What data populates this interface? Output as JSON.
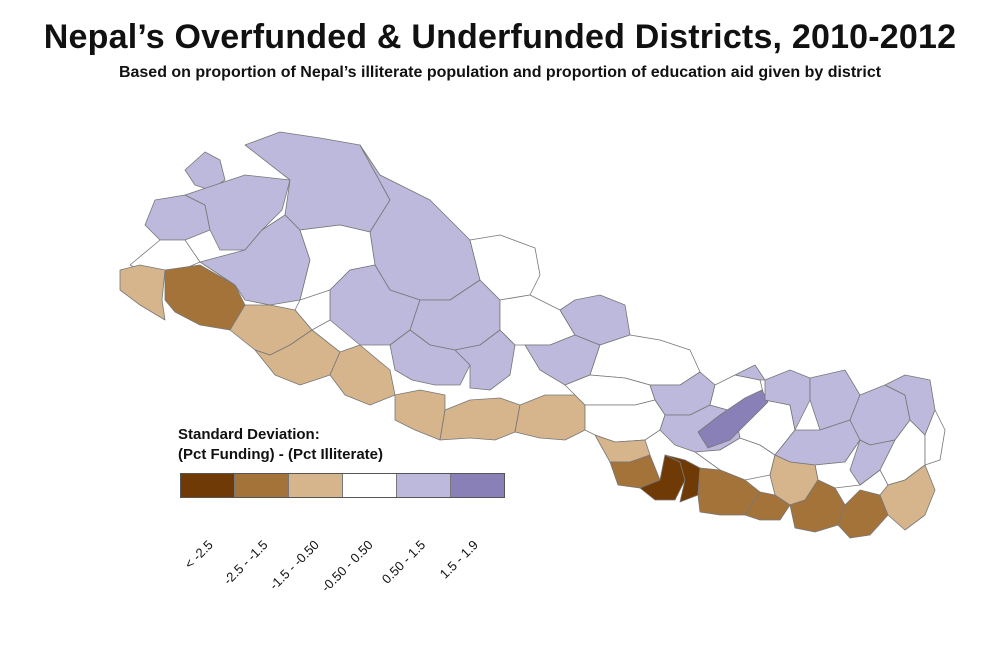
{
  "title": "Nepal’s Overfunded & Underfunded Districts, 2010-2012",
  "subtitle": "Based on proportion of Nepal’s illiterate population and proportion of education aid given by district",
  "legend": {
    "title_line1": "Standard Deviation:",
    "title_line2": "(Pct Funding) - (Pct Illiterate)",
    "classes": [
      {
        "label": "< -2.5",
        "color": "#6f3a06"
      },
      {
        "label": "-2.5 - -1.5",
        "color": "#a4733a"
      },
      {
        "label": "-1.5 - -0.50",
        "color": "#d6b58c"
      },
      {
        "label": "-0.50 - 0.50",
        "color": "#ffffff"
      },
      {
        "label": "0.50 - 1.5",
        "color": "#bcb9dc"
      },
      {
        "label": "1.5 - 1.9",
        "color": "#8a80b8"
      }
    ]
  },
  "map": {
    "border_color": "#777777",
    "regions": [
      {
        "name": "far-west-mountain-north",
        "class": 4
      },
      {
        "name": "far-west-mountain-south",
        "class": 4
      },
      {
        "name": "far-west-hill",
        "class": 4
      },
      {
        "name": "far-west-inner",
        "class": 3
      },
      {
        "name": "far-west-terai-1",
        "class": 2
      },
      {
        "name": "far-west-terai-2",
        "class": 1
      },
      {
        "name": "mid-west-mountain-1",
        "class": 4
      },
      {
        "name": "mid-west-mountain-2",
        "class": 4
      },
      {
        "name": "mid-west-hill-1",
        "class": 4
      },
      {
        "name": "mid-west-hill-2",
        "class": 3
      },
      {
        "name": "mid-west-hill-3",
        "class": 4
      },
      {
        "name": "mid-west-hill-4",
        "class": 3
      },
      {
        "name": "mid-west-terai-1",
        "class": 2
      },
      {
        "name": "mid-west-terai-2",
        "class": 2
      },
      {
        "name": "mid-west-terai-3",
        "class": 2
      },
      {
        "name": "west-mountain",
        "class": 4
      },
      {
        "name": "west-north-gap",
        "class": 3
      },
      {
        "name": "west-hill-1",
        "class": 4
      },
      {
        "name": "west-hill-2",
        "class": 4
      },
      {
        "name": "west-hill-3",
        "class": 3
      },
      {
        "name": "west-hill-4",
        "class": 4
      },
      {
        "name": "west-hill-5",
        "class": 4
      },
      {
        "name": "west-terai-1",
        "class": 2
      },
      {
        "name": "west-terai-2",
        "class": 2
      },
      {
        "name": "west-terai-3",
        "class": 2
      },
      {
        "name": "central-north-1",
        "class": 3
      },
      {
        "name": "central-hill-1",
        "class": 3
      },
      {
        "name": "central-hill-2",
        "class": 4
      },
      {
        "name": "central-hill-3",
        "class": 3
      },
      {
        "name": "central-hill-4",
        "class": 4
      },
      {
        "name": "central-hill-5",
        "class": 3
      },
      {
        "name": "central-terai-1",
        "class": 2
      },
      {
        "name": "central-terai-2",
        "class": 1
      },
      {
        "name": "central-terai-3",
        "class": 0
      },
      {
        "name": "central-terai-4",
        "class": 0
      },
      {
        "name": "central-terai-5",
        "class": 1
      },
      {
        "name": "central-terai-6",
        "class": 1
      },
      {
        "name": "eastern-hill-1",
        "class": 3
      },
      {
        "name": "eastern-hill-2",
        "class": 3
      },
      {
        "name": "eastern-hill-3",
        "class": 4
      },
      {
        "name": "eastern-hill-4",
        "class": 5
      },
      {
        "name": "eastern-mountain-1",
        "class": 4
      },
      {
        "name": "eastern-mountain-2",
        "class": 4
      },
      {
        "name": "eastern-hill-5",
        "class": 4
      },
      {
        "name": "eastern-hill-6",
        "class": 4
      },
      {
        "name": "eastern-hill-7",
        "class": 3
      },
      {
        "name": "eastern-terai-1",
        "class": 2
      },
      {
        "name": "eastern-terai-2",
        "class": 1
      },
      {
        "name": "eastern-terai-3",
        "class": 1
      },
      {
        "name": "eastern-mountain-3",
        "class": 3
      },
      {
        "name": "eastern-mountain-4",
        "class": 4
      },
      {
        "name": "eastern-hill-8",
        "class": 4
      },
      {
        "name": "eastern-hill-9",
        "class": 3
      },
      {
        "name": "eastern-terai-4",
        "class": 2
      }
    ]
  }
}
